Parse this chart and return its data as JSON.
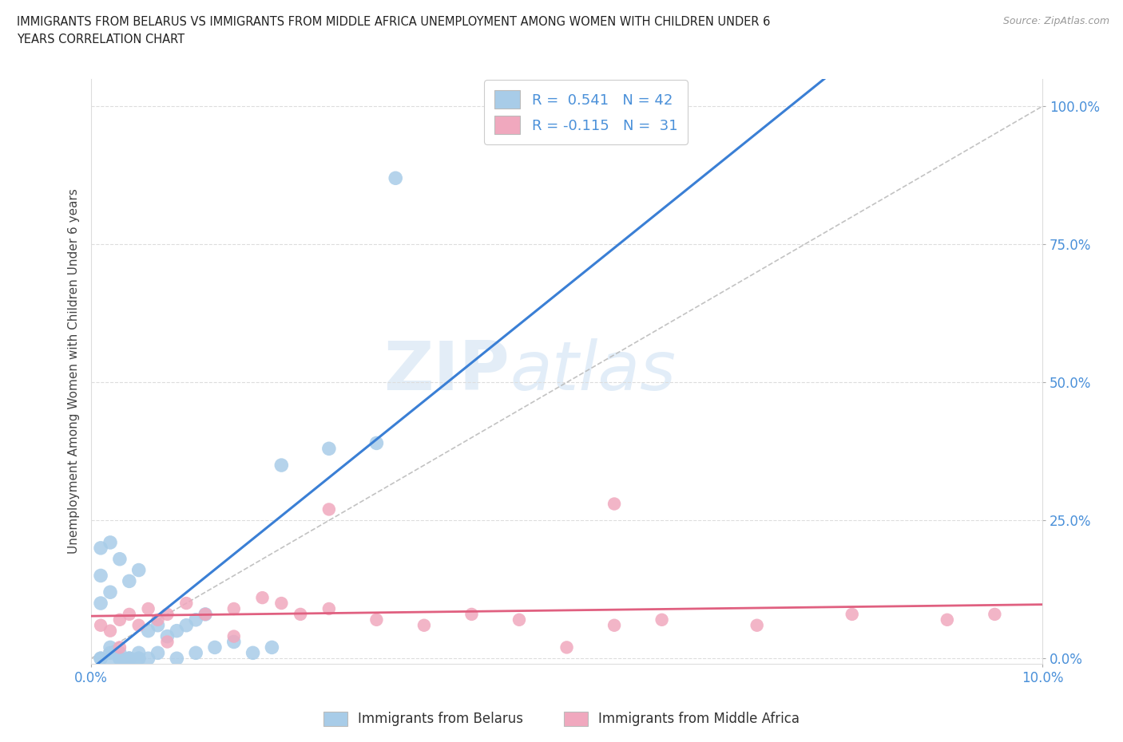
{
  "title_line1": "IMMIGRANTS FROM BELARUS VS IMMIGRANTS FROM MIDDLE AFRICA UNEMPLOYMENT AMONG WOMEN WITH CHILDREN UNDER 6",
  "title_line2": "YEARS CORRELATION CHART",
  "source_text": "Source: ZipAtlas.com",
  "ylabel": "Unemployment Among Women with Children Under 6 years",
  "xmin": 0.0,
  "xmax": 0.1,
  "ymin": -0.01,
  "ymax": 1.05,
  "ytick_vals": [
    0.0,
    0.25,
    0.5,
    0.75,
    1.0
  ],
  "ytick_labels": [
    "0.0%",
    "25.0%",
    "50.0%",
    "75.0%",
    "100.0%"
  ],
  "xtick_vals": [
    0.0,
    0.1
  ],
  "xtick_labels": [
    "0.0%",
    "10.0%"
  ],
  "blue_color": "#a8cce8",
  "pink_color": "#f0a8be",
  "trendline_blue": "#3a7fd5",
  "trendline_pink": "#e06080",
  "diagonal_color": "#b8b8b8",
  "legend_R1": "R =  0.541",
  "legend_N1": "N = 42",
  "legend_R2": "R = -0.115",
  "legend_N2": "N =  31",
  "watermark_zip": "ZIP",
  "watermark_atlas": "atlas",
  "belarus_x": [
    0.003,
    0.005,
    0.007,
    0.009,
    0.011,
    0.013,
    0.015,
    0.017,
    0.019,
    0.001,
    0.002,
    0.003,
    0.004,
    0.005,
    0.006,
    0.002,
    0.003,
    0.004,
    0.001,
    0.002,
    0.001,
    0.003,
    0.004,
    0.005,
    0.002,
    0.001,
    0.006,
    0.007,
    0.008,
    0.009,
    0.01,
    0.011,
    0.012,
    0.001,
    0.002,
    0.003,
    0.004,
    0.005,
    0.03,
    0.02,
    0.025,
    0.032
  ],
  "belarus_y": [
    0.0,
    0.0,
    0.01,
    0.0,
    0.01,
    0.02,
    0.03,
    0.01,
    0.02,
    0.0,
    0.01,
    0.0,
    0.0,
    0.01,
    0.0,
    0.02,
    0.01,
    0.0,
    0.2,
    0.21,
    0.15,
    0.18,
    0.14,
    0.16,
    0.12,
    0.1,
    0.05,
    0.06,
    0.04,
    0.05,
    0.06,
    0.07,
    0.08,
    0.0,
    0.0,
    0.0,
    0.0,
    0.0,
    0.39,
    0.35,
    0.38,
    0.87
  ],
  "africa_x": [
    0.001,
    0.002,
    0.003,
    0.004,
    0.005,
    0.006,
    0.007,
    0.008,
    0.01,
    0.012,
    0.015,
    0.018,
    0.02,
    0.022,
    0.025,
    0.03,
    0.035,
    0.04,
    0.045,
    0.05,
    0.055,
    0.06,
    0.07,
    0.08,
    0.09,
    0.095,
    0.025,
    0.055,
    0.003,
    0.008,
    0.015
  ],
  "africa_y": [
    0.06,
    0.05,
    0.07,
    0.08,
    0.06,
    0.09,
    0.07,
    0.08,
    0.1,
    0.08,
    0.09,
    0.11,
    0.1,
    0.08,
    0.09,
    0.07,
    0.06,
    0.08,
    0.07,
    0.02,
    0.06,
    0.07,
    0.06,
    0.08,
    0.07,
    0.08,
    0.27,
    0.28,
    0.02,
    0.03,
    0.04
  ]
}
